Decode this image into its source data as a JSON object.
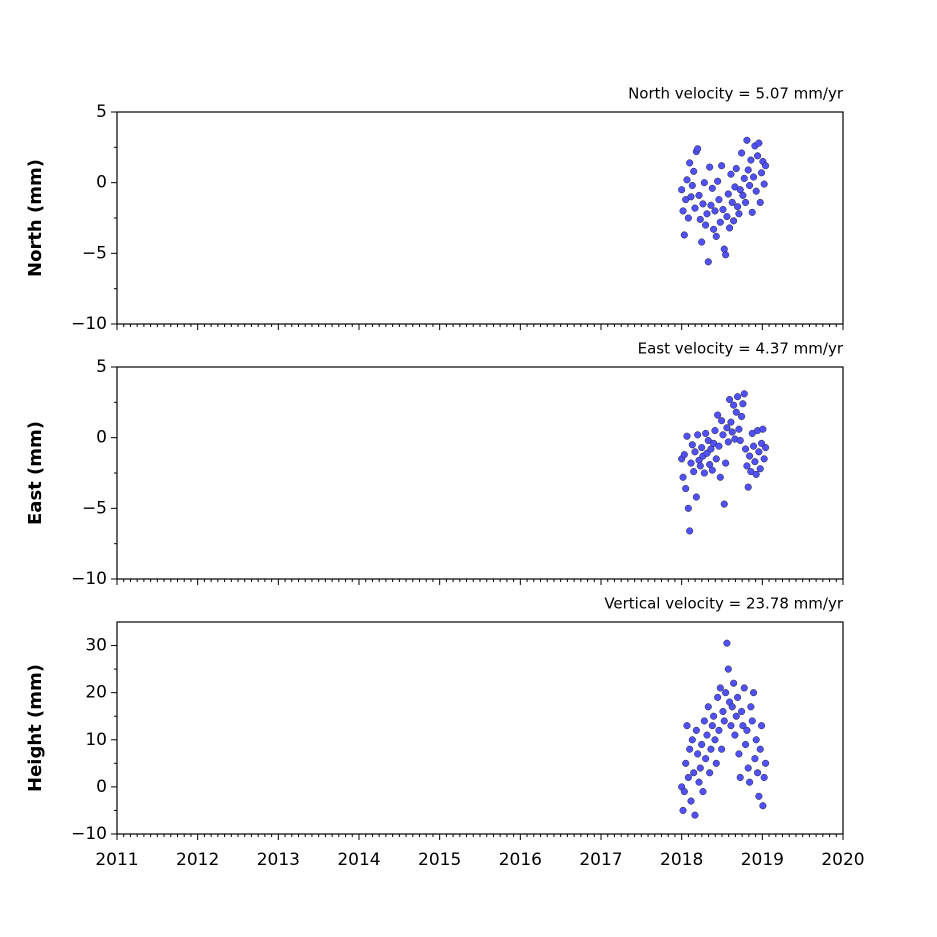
{
  "chart_data": [
    {
      "type": "scatter",
      "title": "North velocity = 5.07 mm/yr",
      "ylabel": "North (mm)",
      "color": "#5050ff",
      "xlim": [
        2011,
        2020
      ],
      "xticks": [
        2011,
        2012,
        2013,
        2014,
        2015,
        2016,
        2017,
        2018,
        2019,
        2020
      ],
      "ylim": [
        -10,
        5
      ],
      "yticks": [
        {
          "value": -10,
          "label": "−10"
        },
        {
          "value": -5,
          "label": "−5"
        },
        0,
        5
      ],
      "x": [
        2018.0,
        2018.017,
        2018.033,
        2018.05,
        2018.066,
        2018.083,
        2018.099,
        2018.116,
        2018.132,
        2018.149,
        2018.165,
        2018.182,
        2018.198,
        2018.215,
        2018.231,
        2018.248,
        2018.264,
        2018.281,
        2018.297,
        2018.314,
        2018.33,
        2018.347,
        2018.363,
        2018.38,
        2018.396,
        2018.413,
        2018.429,
        2018.446,
        2018.462,
        2018.479,
        2018.495,
        2018.512,
        2018.528,
        2018.545,
        2018.561,
        2018.578,
        2018.594,
        2018.611,
        2018.627,
        2018.644,
        2018.66,
        2018.677,
        2018.693,
        2018.71,
        2018.726,
        2018.743,
        2018.759,
        2018.776,
        2018.792,
        2018.809,
        2018.825,
        2018.842,
        2018.858,
        2018.875,
        2018.891,
        2018.908,
        2018.924,
        2018.941,
        2018.957,
        2018.974,
        2018.99,
        2019.007,
        2019.023,
        2019.04
      ],
      "values": [
        -0.5,
        -2.0,
        -3.7,
        -1.2,
        0.2,
        -2.5,
        1.4,
        -1.0,
        -0.2,
        0.8,
        -1.8,
        2.2,
        2.4,
        -0.9,
        -2.6,
        -4.2,
        -1.5,
        0.0,
        -3.0,
        -2.2,
        -5.6,
        1.1,
        -1.6,
        -0.4,
        -3.3,
        -2.0,
        -3.8,
        0.1,
        -1.2,
        -2.8,
        1.2,
        -1.9,
        -4.7,
        -5.1,
        -2.4,
        -0.8,
        -3.2,
        0.6,
        -1.4,
        -2.7,
        -0.3,
        1.0,
        -1.7,
        -2.2,
        -0.5,
        2.1,
        -0.9,
        0.3,
        -1.4,
        3.0,
        0.9,
        -0.2,
        1.6,
        -2.1,
        0.4,
        2.6,
        -0.6,
        1.9,
        2.8,
        -1.4,
        0.7,
        1.5,
        -0.1,
        1.2
      ]
    },
    {
      "type": "scatter",
      "title": "East velocity = 4.37 mm/yr",
      "ylabel": "East (mm)",
      "color": "#5050ff",
      "xlim": [
        2011,
        2020
      ],
      "xticks": [
        2011,
        2012,
        2013,
        2014,
        2015,
        2016,
        2017,
        2018,
        2019,
        2020
      ],
      "ylim": [
        -10,
        5
      ],
      "yticks": [
        {
          "value": -10,
          "label": "−10"
        },
        {
          "value": -5,
          "label": "−5"
        },
        0,
        5
      ],
      "x": [
        2018.0,
        2018.017,
        2018.033,
        2018.05,
        2018.066,
        2018.083,
        2018.099,
        2018.116,
        2018.132,
        2018.149,
        2018.165,
        2018.182,
        2018.198,
        2018.215,
        2018.231,
        2018.248,
        2018.264,
        2018.281,
        2018.297,
        2018.314,
        2018.33,
        2018.347,
        2018.363,
        2018.38,
        2018.396,
        2018.413,
        2018.429,
        2018.446,
        2018.462,
        2018.479,
        2018.495,
        2018.512,
        2018.528,
        2018.545,
        2018.561,
        2018.578,
        2018.594,
        2018.611,
        2018.627,
        2018.644,
        2018.66,
        2018.677,
        2018.693,
        2018.71,
        2018.726,
        2018.743,
        2018.759,
        2018.776,
        2018.792,
        2018.809,
        2018.825,
        2018.842,
        2018.858,
        2018.875,
        2018.891,
        2018.908,
        2018.924,
        2018.941,
        2018.957,
        2018.974,
        2018.99,
        2019.007,
        2019.023,
        2019.04
      ],
      "values": [
        -1.5,
        -2.8,
        -1.2,
        -3.6,
        0.1,
        -5.0,
        -6.6,
        -1.8,
        -0.5,
        -2.4,
        -1.0,
        -4.2,
        0.2,
        -1.6,
        -2.0,
        -0.7,
        -1.3,
        -2.5,
        0.3,
        -1.1,
        -0.2,
        -1.9,
        -0.8,
        -2.3,
        -0.4,
        0.5,
        -1.5,
        1.6,
        -0.6,
        -2.8,
        1.2,
        0.2,
        -4.7,
        -1.8,
        0.7,
        -0.3,
        2.7,
        1.1,
        0.4,
        2.3,
        -0.1,
        1.8,
        2.9,
        0.6,
        -0.2,
        1.5,
        2.4,
        3.1,
        -0.8,
        -2.0,
        -3.5,
        -1.3,
        -2.4,
        0.3,
        -0.6,
        -1.7,
        -2.6,
        0.5,
        -1.0,
        -2.2,
        -0.4,
        0.6,
        -1.5,
        -0.7
      ]
    },
    {
      "type": "scatter",
      "title": "Vertical velocity = 23.78 mm/yr",
      "ylabel": "Height (mm)",
      "color": "#5050ff",
      "xlim": [
        2011,
        2020
      ],
      "xticks": [
        2011,
        2012,
        2013,
        2014,
        2015,
        2016,
        2017,
        2018,
        2019,
        2020
      ],
      "ylim": [
        -10,
        35
      ],
      "yticks": [
        {
          "value": -10,
          "label": "−10"
        },
        0,
        10,
        20,
        30
      ],
      "x": [
        2018.0,
        2018.017,
        2018.033,
        2018.05,
        2018.066,
        2018.083,
        2018.099,
        2018.116,
        2018.132,
        2018.149,
        2018.165,
        2018.182,
        2018.198,
        2018.215,
        2018.231,
        2018.248,
        2018.264,
        2018.281,
        2018.297,
        2018.314,
        2018.33,
        2018.347,
        2018.363,
        2018.38,
        2018.396,
        2018.413,
        2018.429,
        2018.446,
        2018.462,
        2018.479,
        2018.495,
        2018.512,
        2018.528,
        2018.545,
        2018.561,
        2018.578,
        2018.594,
        2018.611,
        2018.627,
        2018.644,
        2018.66,
        2018.677,
        2018.693,
        2018.71,
        2018.726,
        2018.743,
        2018.759,
        2018.776,
        2018.792,
        2018.809,
        2018.825,
        2018.842,
        2018.858,
        2018.875,
        2018.891,
        2018.908,
        2018.924,
        2018.941,
        2018.957,
        2018.974,
        2018.99,
        2019.007,
        2019.023,
        2019.04
      ],
      "values": [
        0,
        -5,
        -1,
        5,
        13,
        2,
        8,
        -3,
        10,
        3,
        -6,
        12,
        7,
        1,
        4,
        9,
        -1,
        14,
        6,
        11,
        17,
        3,
        8,
        13,
        15,
        10,
        5,
        19,
        12,
        21,
        8,
        16,
        14,
        20,
        30.5,
        25,
        18,
        13,
        17,
        22,
        11,
        15,
        19,
        7,
        2,
        16,
        13,
        21,
        9,
        12,
        4,
        1,
        17,
        14,
        20,
        6,
        10,
        3,
        -2,
        8,
        13,
        -4,
        2,
        5
      ]
    }
  ]
}
